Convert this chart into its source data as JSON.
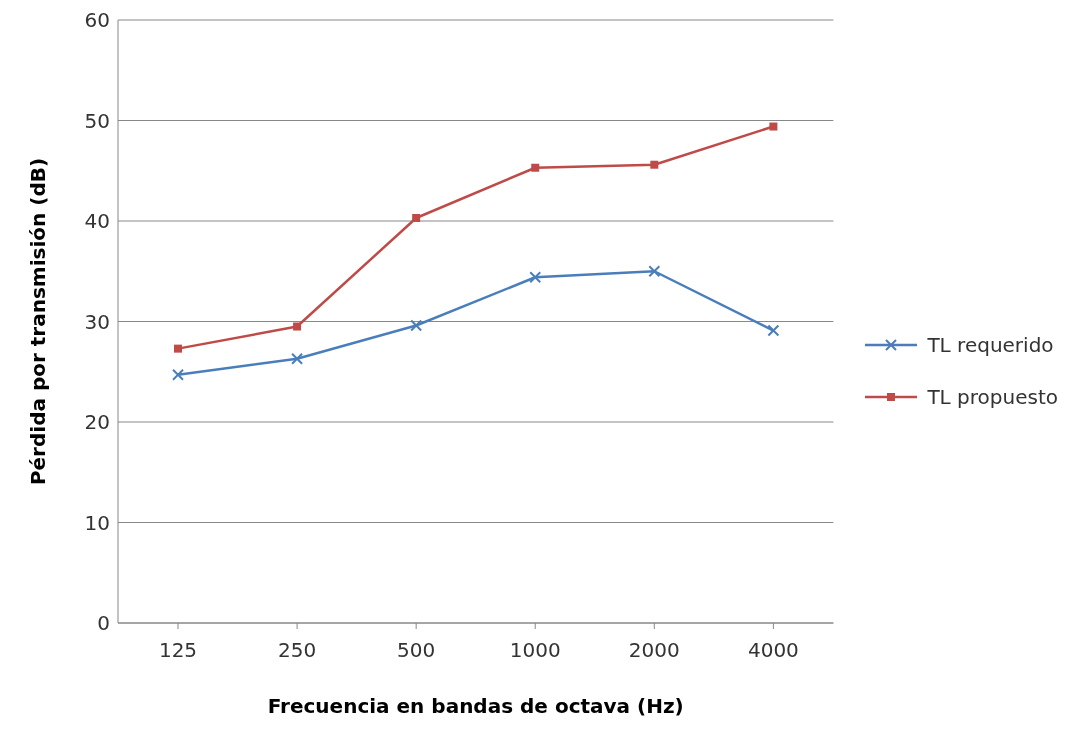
{
  "chart_data": {
    "type": "line",
    "xlabel": "Frecuencia en bandas de octava (Hz)",
    "ylabel": "Pérdida por transmisión (dB)",
    "categories": [
      "125",
      "250",
      "500",
      "1000",
      "2000",
      "4000"
    ],
    "series": [
      {
        "name": "TL requerido",
        "color": "#4a7ebb",
        "marker": "cross",
        "values": [
          24.7,
          26.3,
          29.6,
          34.4,
          35.0,
          29.1
        ]
      },
      {
        "name": "TL propuesto",
        "color": "#be4b48",
        "marker": "square",
        "values": [
          27.3,
          29.5,
          40.3,
          45.3,
          45.6,
          49.4
        ]
      }
    ],
    "ylim": [
      0,
      60
    ],
    "yticks": [
      0,
      10,
      20,
      30,
      40,
      50,
      60
    ],
    "grid": "y",
    "legend": "right",
    "line_style": "solid"
  }
}
